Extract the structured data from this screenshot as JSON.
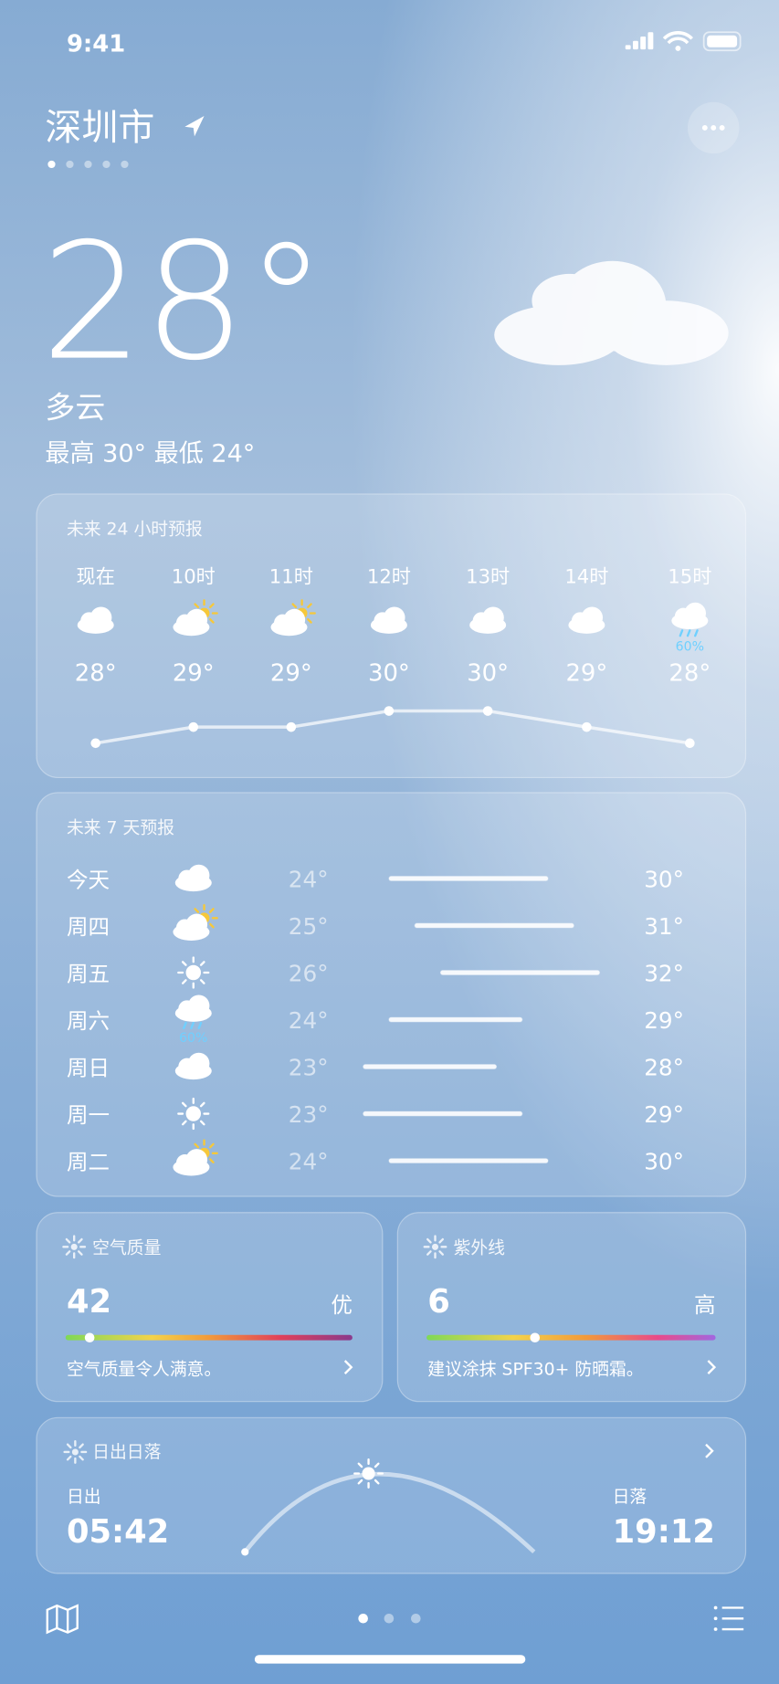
{
  "status_bar": {
    "time": "9:41"
  },
  "header": {
    "city": "深圳市",
    "temperature": "28°",
    "condition": "多云",
    "high_low": "最高 30° 最低 24°"
  },
  "hourly": {
    "title": "未来 24 小时预报",
    "hours": [
      {
        "time": "现在",
        "temp": {
          "value": 28,
          "label": "28°"
        }
      },
      {
        "time": "10时",
        "temp": {
          "value": 29,
          "label": "29°"
        }
      },
      {
        "time": "11时",
        "temp": {
          "value": 29,
          "label": "29°"
        }
      },
      {
        "time": "12时",
        "temp": {
          "value": 30,
          "label": "30°"
        }
      },
      {
        "time": "13时",
        "temp": {
          "value": 30,
          "label": "30°"
        }
      },
      {
        "time": "14时",
        "temp": {
          "value": 29,
          "label": "29°"
        }
      },
      {
        "time": "15时",
        "temp": {
          "value": 28,
          "label": "28°"
        },
        "precip": "60%"
      }
    ]
  },
  "daily": {
    "title": "未来 7 天预报",
    "days": [
      {
        "day": "今天",
        "low": {
          "value": 24,
          "label": "24°"
        },
        "high": {
          "value": 30,
          "label": "30°"
        }
      },
      {
        "day": "周四",
        "low": {
          "value": 25,
          "label": "25°"
        },
        "high": {
          "value": 31,
          "label": "31°"
        }
      },
      {
        "day": "周五",
        "low": {
          "value": 26,
          "label": "26°"
        },
        "high": {
          "value": 32,
          "label": "32°"
        }
      },
      {
        "day": "周六",
        "low": {
          "value": 24,
          "label": "24°"
        },
        "high": {
          "value": 29,
          "label": "29°"
        },
        "precip": "60%"
      },
      {
        "day": "周日",
        "low": {
          "value": 23,
          "label": "23°"
        },
        "high": {
          "value": 28,
          "label": "28°"
        }
      },
      {
        "day": "周一",
        "low": {
          "value": 23,
          "label": "23°"
        },
        "high": {
          "value": 29,
          "label": "29°"
        }
      },
      {
        "day": "周二",
        "low": {
          "value": 24,
          "label": "24°"
        },
        "high": {
          "value": 30,
          "label": "30°"
        }
      }
    ]
  },
  "air_quality": {
    "title": "空气质量",
    "value": 42,
    "level": "优",
    "note": "空气质量令人满意。"
  },
  "uv": {
    "title": "紫外线",
    "value": 6,
    "level": "高",
    "note": "建议涂抹 SPF30+ 防晒霜。"
  },
  "sun": {
    "title": "日出日落",
    "sunrise_label": "日出",
    "sunrise": "05:42",
    "sunset_label": "日落",
    "sunset": "19:12"
  }
}
